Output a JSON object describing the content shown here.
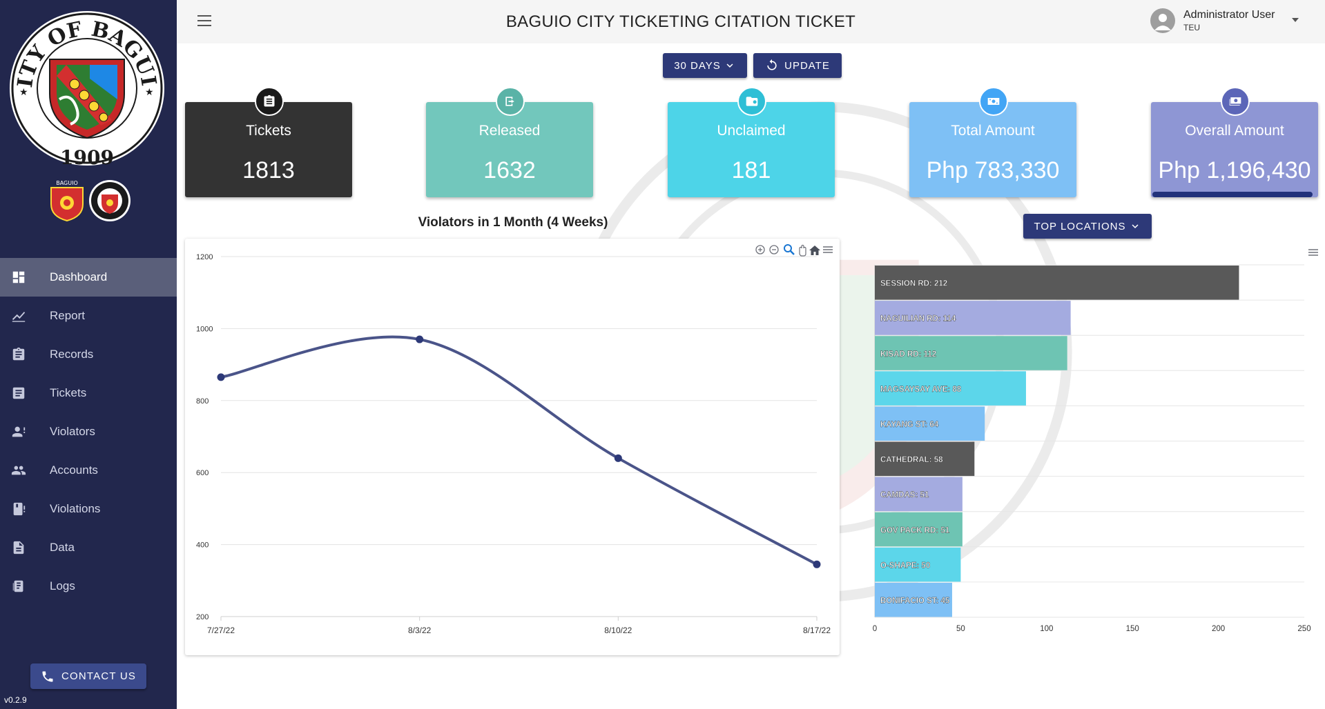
{
  "sidebar": {
    "logo": "city-of-baguio-seal-icon",
    "logo_text_top": "CITY OF BAGUIO",
    "logo_year": "1909",
    "badge_left_text": "BAGUIO",
    "nav": [
      {
        "label": "Dashboard",
        "icon": "dashboard-icon",
        "active": true
      },
      {
        "label": "Report",
        "icon": "line-chart-icon",
        "active": false
      },
      {
        "label": "Records",
        "icon": "clipboard-icon",
        "active": false
      },
      {
        "label": "Tickets",
        "icon": "ticket-icon",
        "active": false
      },
      {
        "label": "Violators",
        "icon": "person-alert-icon",
        "active": false
      },
      {
        "label": "Accounts",
        "icon": "people-icon",
        "active": false
      },
      {
        "label": "Violations",
        "icon": "book-alert-icon",
        "active": false
      },
      {
        "label": "Data",
        "icon": "document-icon",
        "active": false
      },
      {
        "label": "Logs",
        "icon": "logs-icon",
        "active": false
      }
    ],
    "contact_label": "CONTACT US",
    "version": "v0.2.9"
  },
  "header": {
    "title": "BAGUIO CITY TICKETING CITATION TICKET",
    "user_name": "Administrator User",
    "user_role": "TEU"
  },
  "controls": {
    "range_label": "30 DAYS",
    "update_label": "UPDATE",
    "locations_label": "TOP LOCATIONS"
  },
  "colors": {
    "sidebar": "#22274d",
    "tickets": "#333333",
    "released": "#72c7bc",
    "unclaimed": "#4dd4e8",
    "total": "#7ec0f5",
    "overall": "#8e96d4"
  },
  "cards": [
    {
      "label": "Tickets",
      "value": "1813",
      "icon": "clipboard-icon"
    },
    {
      "label": "Released",
      "value": "1632",
      "icon": "release-icon"
    },
    {
      "label": "Unclaimed",
      "value": "181",
      "icon": "folder-alert-icon"
    },
    {
      "label": "Total Amount",
      "value": "Php 783,330",
      "icon": "cash-icon"
    },
    {
      "label": "Overall Amount",
      "value": "Php 1,196,430",
      "icon": "money-stack-icon"
    }
  ],
  "chart_data": [
    {
      "type": "line",
      "title": "Violators in 1 Month (4 Weeks)",
      "x": [
        "7/27/22",
        "8/3/22",
        "8/10/22",
        "8/17/22"
      ],
      "series": [
        {
          "values": [
            865,
            970,
            640,
            345
          ]
        }
      ],
      "ylim": [
        200,
        1200
      ],
      "yticks": [
        200,
        400,
        600,
        800,
        1000,
        1200
      ],
      "grid": true,
      "color": "#4a5489"
    },
    {
      "type": "bar",
      "orientation": "horizontal",
      "categories": [
        "SESSION RD",
        "NAGUILIAN RD",
        "KISAD RD",
        "MAGSAYSAY AVE",
        "KAYANG ST",
        "CATHEDRAL",
        "CAMDAS",
        "GOV PACK RD",
        "O-SHAPE",
        "BONIFACIO ST"
      ],
      "values": [
        212,
        114,
        112,
        88,
        64,
        58,
        51,
        51,
        50,
        45
      ],
      "colors": [
        "#595959",
        "#a4abe0",
        "#6ec4b3",
        "#5cd6ea",
        "#7ec0f5",
        "#595959",
        "#a4abe0",
        "#6ec4b3",
        "#5cd6ea",
        "#7ec0f5"
      ],
      "xlim": [
        0,
        250
      ],
      "xticks": [
        0,
        50,
        100,
        150,
        200,
        250
      ],
      "grid": true
    }
  ]
}
